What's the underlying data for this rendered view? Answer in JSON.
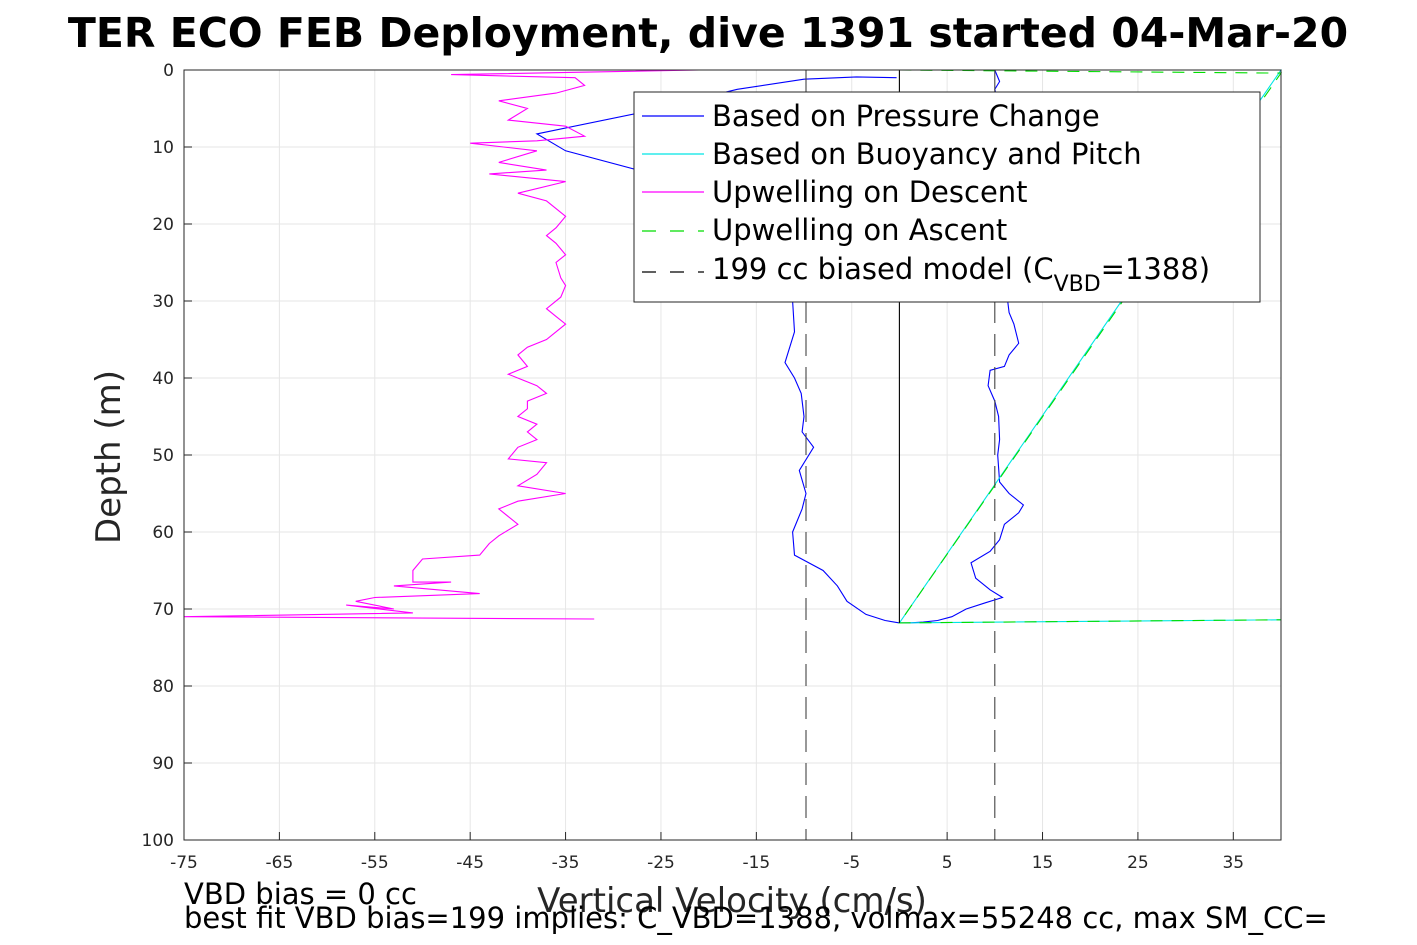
{
  "chart_data": {
    "type": "line",
    "title": "TER ECO FEB Deployment, dive 1391 started 04-Mar-20",
    "xlabel": "Vertical Velocity (cm/s)",
    "ylabel": "Depth (m)",
    "xlim": [
      -75,
      40
    ],
    "ylim": [
      0,
      100
    ],
    "y_reversed": true,
    "grid": true,
    "x_ticks": [
      -75,
      -65,
      -55,
      -45,
      -35,
      -25,
      -15,
      -5,
      5,
      15,
      25,
      35
    ],
    "y_ticks": [
      0,
      10,
      20,
      30,
      40,
      50,
      60,
      70,
      80,
      90,
      100
    ],
    "legend": {
      "position": "top-right",
      "entries": [
        {
          "label": "Based on Pressure Change",
          "color": "#0000ff",
          "style": "solid"
        },
        {
          "label": "Based on Buoyancy and Pitch",
          "color": "#00e5e5",
          "style": "solid"
        },
        {
          "label": "Upwelling on Descent",
          "color": "#ff00ff",
          "style": "solid"
        },
        {
          "label": "Upwelling on Ascent",
          "color": "#00dd00",
          "style": "dashed"
        },
        {
          "label": "199 cc biased model (C",
          "sub": "VBD",
          "suffix": "=1388)",
          "color": "#000000",
          "style": "dashed"
        }
      ]
    },
    "series": [
      {
        "name": "Based on Pressure Change",
        "color": "#0000ff",
        "dash": "",
        "points": [
          [
            -0.3,
            1.0
          ],
          [
            -4.5,
            0.9
          ],
          [
            -10,
            1.2
          ],
          [
            -17,
            2.5
          ],
          [
            -27,
            5.5
          ],
          [
            -38,
            8.3
          ],
          [
            -35,
            10.5
          ],
          [
            -25,
            13.8
          ],
          [
            -20,
            15.2
          ],
          [
            -15,
            16.6
          ],
          [
            -12,
            19
          ],
          [
            -11.5,
            22
          ],
          [
            -11.5,
            26
          ],
          [
            -11.2,
            30
          ],
          [
            -11.0,
            34
          ],
          [
            -12.0,
            38
          ],
          [
            -11.0,
            40
          ],
          [
            -10.3,
            42
          ],
          [
            -10.0,
            45
          ],
          [
            -10.2,
            47
          ],
          [
            -9,
            49
          ],
          [
            -10.5,
            52
          ],
          [
            -9.8,
            55
          ],
          [
            -10.2,
            57
          ],
          [
            -11.2,
            60
          ],
          [
            -11.0,
            63
          ],
          [
            -8.0,
            65
          ],
          [
            -6.5,
            67
          ],
          [
            -5.5,
            69
          ],
          [
            -3.5,
            70.7
          ],
          [
            -1.5,
            71.5
          ],
          [
            0.0,
            71.8
          ],
          [
            1.0,
            71.8
          ],
          [
            2.5,
            71.7
          ],
          [
            4.0,
            71.5
          ],
          [
            5.5,
            71
          ],
          [
            7.0,
            70
          ],
          [
            9.0,
            69.2
          ],
          [
            10.8,
            68.5
          ],
          [
            9.5,
            67.5
          ],
          [
            8.0,
            66
          ],
          [
            7.5,
            64
          ],
          [
            9.5,
            62.5
          ],
          [
            10.5,
            61
          ],
          [
            11.0,
            59
          ],
          [
            12.5,
            57.5
          ],
          [
            13.0,
            56.5
          ],
          [
            11.5,
            55
          ],
          [
            10.5,
            53.5
          ],
          [
            10.3,
            50
          ],
          [
            10.5,
            48
          ],
          [
            10.4,
            45
          ],
          [
            10.0,
            43
          ],
          [
            9.3,
            41
          ],
          [
            9.5,
            39
          ],
          [
            11.0,
            38.5
          ],
          [
            11.5,
            37
          ],
          [
            12.5,
            35.5
          ],
          [
            12.0,
            33
          ],
          [
            11.5,
            31.5
          ],
          [
            11.3,
            29.5
          ],
          [
            10.5,
            5
          ],
          [
            10.0,
            2.5
          ],
          [
            10.5,
            1.5
          ],
          [
            10.0,
            0.0
          ]
        ]
      },
      {
        "name": "Based on Buoyancy and Pitch",
        "color": "#00e5e5",
        "dash": "",
        "points": [
          [
            0,
            0.0
          ],
          [
            40,
            0.0
          ],
          [
            0,
            71.8
          ],
          [
            40,
            71.4
          ]
        ]
      },
      {
        "name": "Upwelling on Descent",
        "color": "#ff00ff",
        "dash": "",
        "points": [
          [
            -21,
            0.0
          ],
          [
            -47,
            0.6
          ],
          [
            -34,
            1.0
          ],
          [
            -33,
            2.0
          ],
          [
            -36,
            3.0
          ],
          [
            -42,
            4.0
          ],
          [
            -39,
            5.0
          ],
          [
            -41,
            6.5
          ],
          [
            -35,
            7.3
          ],
          [
            -33,
            8.6
          ],
          [
            -38,
            9.2
          ],
          [
            -45,
            9.5
          ],
          [
            -38,
            10.5
          ],
          [
            -42,
            12.0
          ],
          [
            -37,
            13.0
          ],
          [
            -43,
            13.5
          ],
          [
            -35,
            14.5
          ],
          [
            -40,
            16.0
          ],
          [
            -37,
            17.0
          ],
          [
            -36,
            18.0
          ],
          [
            -35,
            19.0
          ],
          [
            -36,
            20.5
          ],
          [
            -37,
            21.5
          ],
          [
            -36,
            22.5
          ],
          [
            -35,
            24.0
          ],
          [
            -36,
            25.0
          ],
          [
            -35.5,
            27.0
          ],
          [
            -35,
            28.0
          ],
          [
            -35.5,
            29.5
          ],
          [
            -37,
            31.0
          ],
          [
            -36,
            32.0
          ],
          [
            -35,
            33.0
          ],
          [
            -37,
            35.0
          ],
          [
            -39,
            36.0
          ],
          [
            -40,
            37.0
          ],
          [
            -39,
            38.5
          ],
          [
            -41,
            39.5
          ],
          [
            -39,
            40.5
          ],
          [
            -38,
            41.0
          ],
          [
            -37,
            42.0
          ],
          [
            -39,
            43.0
          ],
          [
            -39,
            44.0
          ],
          [
            -40,
            45.0
          ],
          [
            -38,
            46.0
          ],
          [
            -39,
            47.0
          ],
          [
            -38,
            48.0
          ],
          [
            -40,
            49.0
          ],
          [
            -41,
            50.5
          ],
          [
            -37,
            51.0
          ],
          [
            -38,
            52.5
          ],
          [
            -40,
            54.0
          ],
          [
            -35,
            55.0
          ],
          [
            -40,
            56.0
          ],
          [
            -42,
            57.0
          ],
          [
            -40,
            59.0
          ],
          [
            -42,
            60.5
          ],
          [
            -43,
            61.5
          ],
          [
            -44,
            63.0
          ],
          [
            -50,
            63.5
          ],
          [
            -51,
            65.0
          ],
          [
            -51,
            66.5
          ],
          [
            -47,
            66.5
          ],
          [
            -53,
            67.0
          ],
          [
            -44,
            68.0
          ],
          [
            -55,
            68.5
          ],
          [
            -57,
            69.0
          ],
          [
            -53,
            70.0
          ],
          [
            -58,
            69.5
          ],
          [
            -51,
            70.5
          ],
          [
            -75,
            71.0
          ],
          [
            -32,
            71.3
          ]
        ]
      },
      {
        "name": "Upwelling on Ascent",
        "color": "#00dd00",
        "dash": "12,9",
        "points": [
          [
            0,
            0.0
          ],
          [
            40,
            0.4
          ],
          [
            0,
            71.8
          ],
          [
            40,
            71.4
          ]
        ]
      },
      {
        "name": "199 cc biased model (C_VBD=1388) left",
        "color": "#444444",
        "dash": "22,11",
        "points": [
          [
            -9.8,
            0
          ],
          [
            -9.8,
            100
          ]
        ]
      },
      {
        "name": "199 cc biased model (C_VBD=1388) right",
        "color": "#444444",
        "dash": "22,11",
        "points": [
          [
            10,
            0
          ],
          [
            10,
            100
          ]
        ]
      },
      {
        "name": "zero line",
        "color": "#000000",
        "dash": "",
        "points": [
          [
            0,
            0
          ],
          [
            0,
            71.8
          ]
        ]
      }
    ],
    "annotations": [
      "VBD bias = 0 cc",
      "best fit VBD bias=199 implies: C_VBD=1388, volmax=55248 cc, max SM_CC="
    ]
  }
}
